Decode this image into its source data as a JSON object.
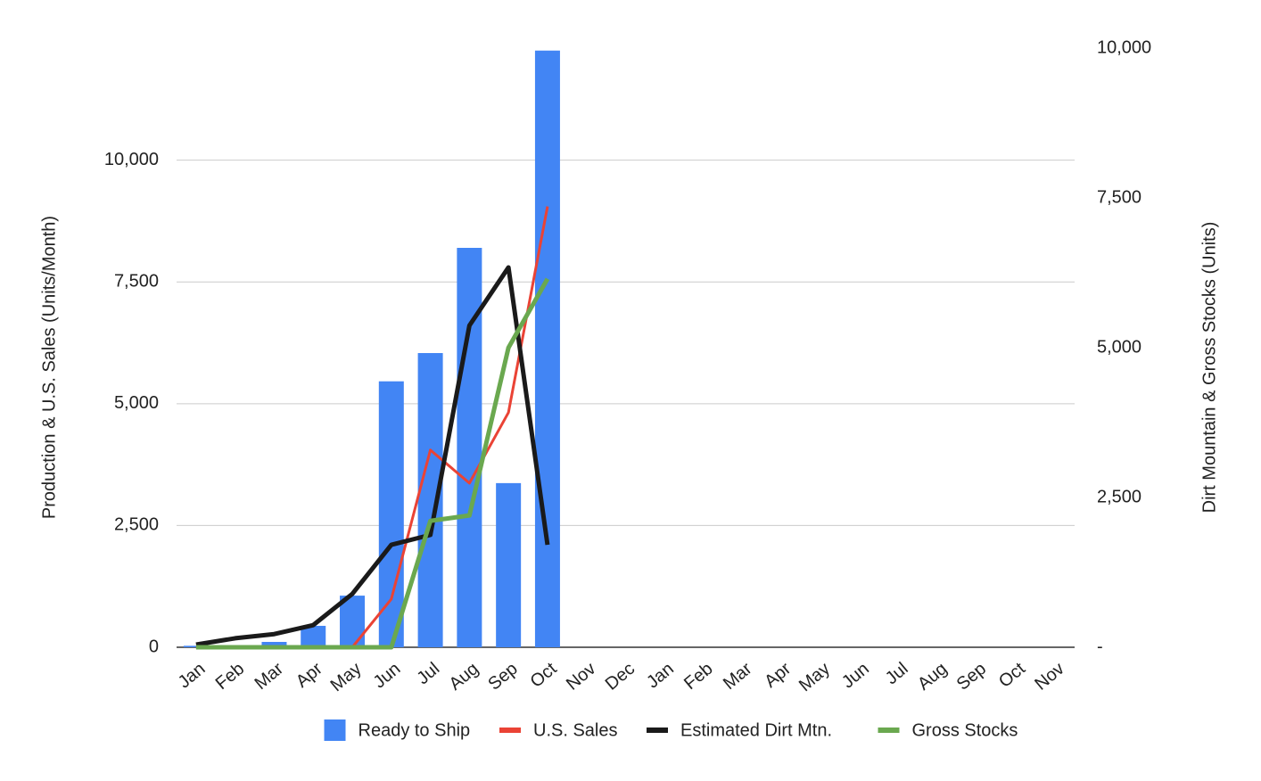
{
  "chart_data": {
    "type": "combo",
    "categories": [
      "Jan",
      "Feb",
      "Mar",
      "Apr",
      "May",
      "Jun",
      "Jul",
      "Aug",
      "Sep",
      "Oct",
      "Nov",
      "Dec",
      "Jan",
      "Feb",
      "Mar",
      "Apr",
      "May",
      "Jun",
      "Jul",
      "Aug",
      "Sep",
      "Oct",
      "Nov"
    ],
    "series": [
      {
        "name": "Ready to Ship",
        "type": "bar",
        "color": "#4285f4",
        "values": [
          30,
          10,
          110,
          440,
          1060,
          5460,
          6040,
          8200,
          3370,
          12250,
          null,
          null,
          null,
          null,
          null,
          null,
          null,
          null,
          null,
          null,
          null,
          null,
          null
        ]
      },
      {
        "name": "U.S. Sales",
        "type": "line",
        "color": "#ea4335",
        "values": [
          0,
          0,
          0,
          0,
          0,
          990,
          4050,
          3370,
          4820,
          9050,
          null,
          null,
          null,
          null,
          null,
          null,
          null,
          null,
          null,
          null,
          null,
          null,
          null
        ]
      },
      {
        "name": "Estimated Dirt Mtn.",
        "type": "line",
        "axis": "y2",
        "color": "#1a1a1a",
        "values": [
          45,
          150,
          220,
          370,
          890,
          1710,
          1875,
          5370,
          6340,
          1710,
          null,
          null,
          null,
          null,
          null,
          null,
          null,
          null,
          null,
          null,
          null,
          null,
          null
        ]
      },
      {
        "name": "Gross Stocks",
        "type": "line",
        "axis": "y2",
        "color": "#6aa84f",
        "values": [
          0,
          0,
          0,
          0,
          0,
          0,
          2110,
          2200,
          5000,
          6150,
          null,
          null,
          null,
          null,
          null,
          null,
          null,
          null,
          null,
          null,
          null,
          null,
          null
        ]
      }
    ],
    "ylabel": "Production & U.S. Sales (Units/Month)",
    "y2label": "Dirt Mountain  & Gross Stocks (Units)",
    "ylim": [
      0,
      12300
    ],
    "yticks": [
      0,
      {
        "value": 2500,
        "label": "2,500"
      },
      {
        "value": 5000,
        "label": "5,000"
      },
      {
        "value": 7500,
        "label": "7,500"
      },
      {
        "value": 10000,
        "label": "10,000"
      }
    ],
    "y2lim": [
      0,
      10000
    ],
    "y2ticks": [
      {
        "value": 0,
        "label": "-"
      },
      {
        "value": 2500,
        "label": "2,500"
      },
      {
        "value": 5000,
        "label": "5,000"
      },
      {
        "value": 7500,
        "label": "7,500"
      },
      {
        "value": 10000,
        "label": "10,000"
      }
    ],
    "grid": true,
    "legend": "bottom"
  }
}
